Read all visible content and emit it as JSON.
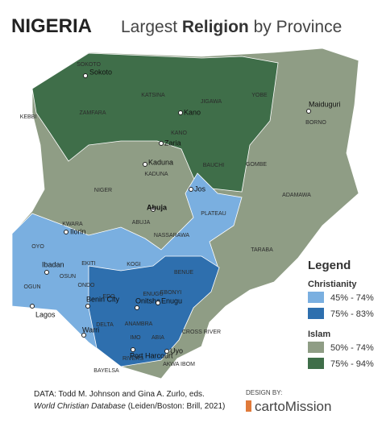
{
  "title": "NIGERIA",
  "subtitle": {
    "before": "Largest ",
    "bold": "Religion",
    "after": " by Province"
  },
  "legend": {
    "title": "Legend",
    "groups": [
      {
        "name": "Christianity",
        "items": [
          {
            "label": "45% - 74%",
            "color": "#7aafe0"
          },
          {
            "label": "75% - 83%",
            "color": "#2e6fae"
          }
        ]
      },
      {
        "name": "Islam",
        "items": [
          {
            "label": "50% - 74%",
            "color": "#8f9d85"
          },
          {
            "label": "75% - 94%",
            "color": "#3f6e49"
          }
        ]
      }
    ]
  },
  "map": {
    "state_labels": [
      "SOKOTO",
      "ZAMFARA",
      "KATSINA",
      "KANO",
      "JIGAWA",
      "YOBE",
      "BORNO",
      "KEBBI",
      "KADUNA",
      "BAUCHI",
      "GOMBE",
      "NIGER",
      "ADAMAWA",
      "PLATEAU",
      "NASSARAWA",
      "ABUJA",
      "KWARA",
      "TARABA",
      "OYO",
      "OSUN",
      "EKITI",
      "KOGI",
      "BENUE",
      "OGUN",
      "ONDO",
      "EDO",
      "DELTA",
      "ANAMBRA",
      "ENUGU",
      "EBONYI",
      "IMO",
      "ABIA",
      "CROSS RIVER",
      "RIVERS",
      "BAYELSA",
      "AKWA IBOM"
    ],
    "cities": [
      "Sokoto",
      "Kano",
      "Zaria",
      "Kaduna",
      "Jos",
      "Abuja",
      "Ilorin",
      "Ibadan",
      "Lagos",
      "Benin City",
      "Onitsha",
      "Enugu",
      "Warri",
      "Uyo",
      "Port Harcourt",
      "Maiduguri"
    ]
  },
  "source": {
    "line1": "DATA: Todd M. Johnson and Gina A. Zurlo, eds.",
    "italic": "World Christian Database",
    "rest": " (Leiden/Boston: Brill, 2021)"
  },
  "credit": {
    "label": "DESIGN BY:",
    "name": "cartoMission"
  }
}
